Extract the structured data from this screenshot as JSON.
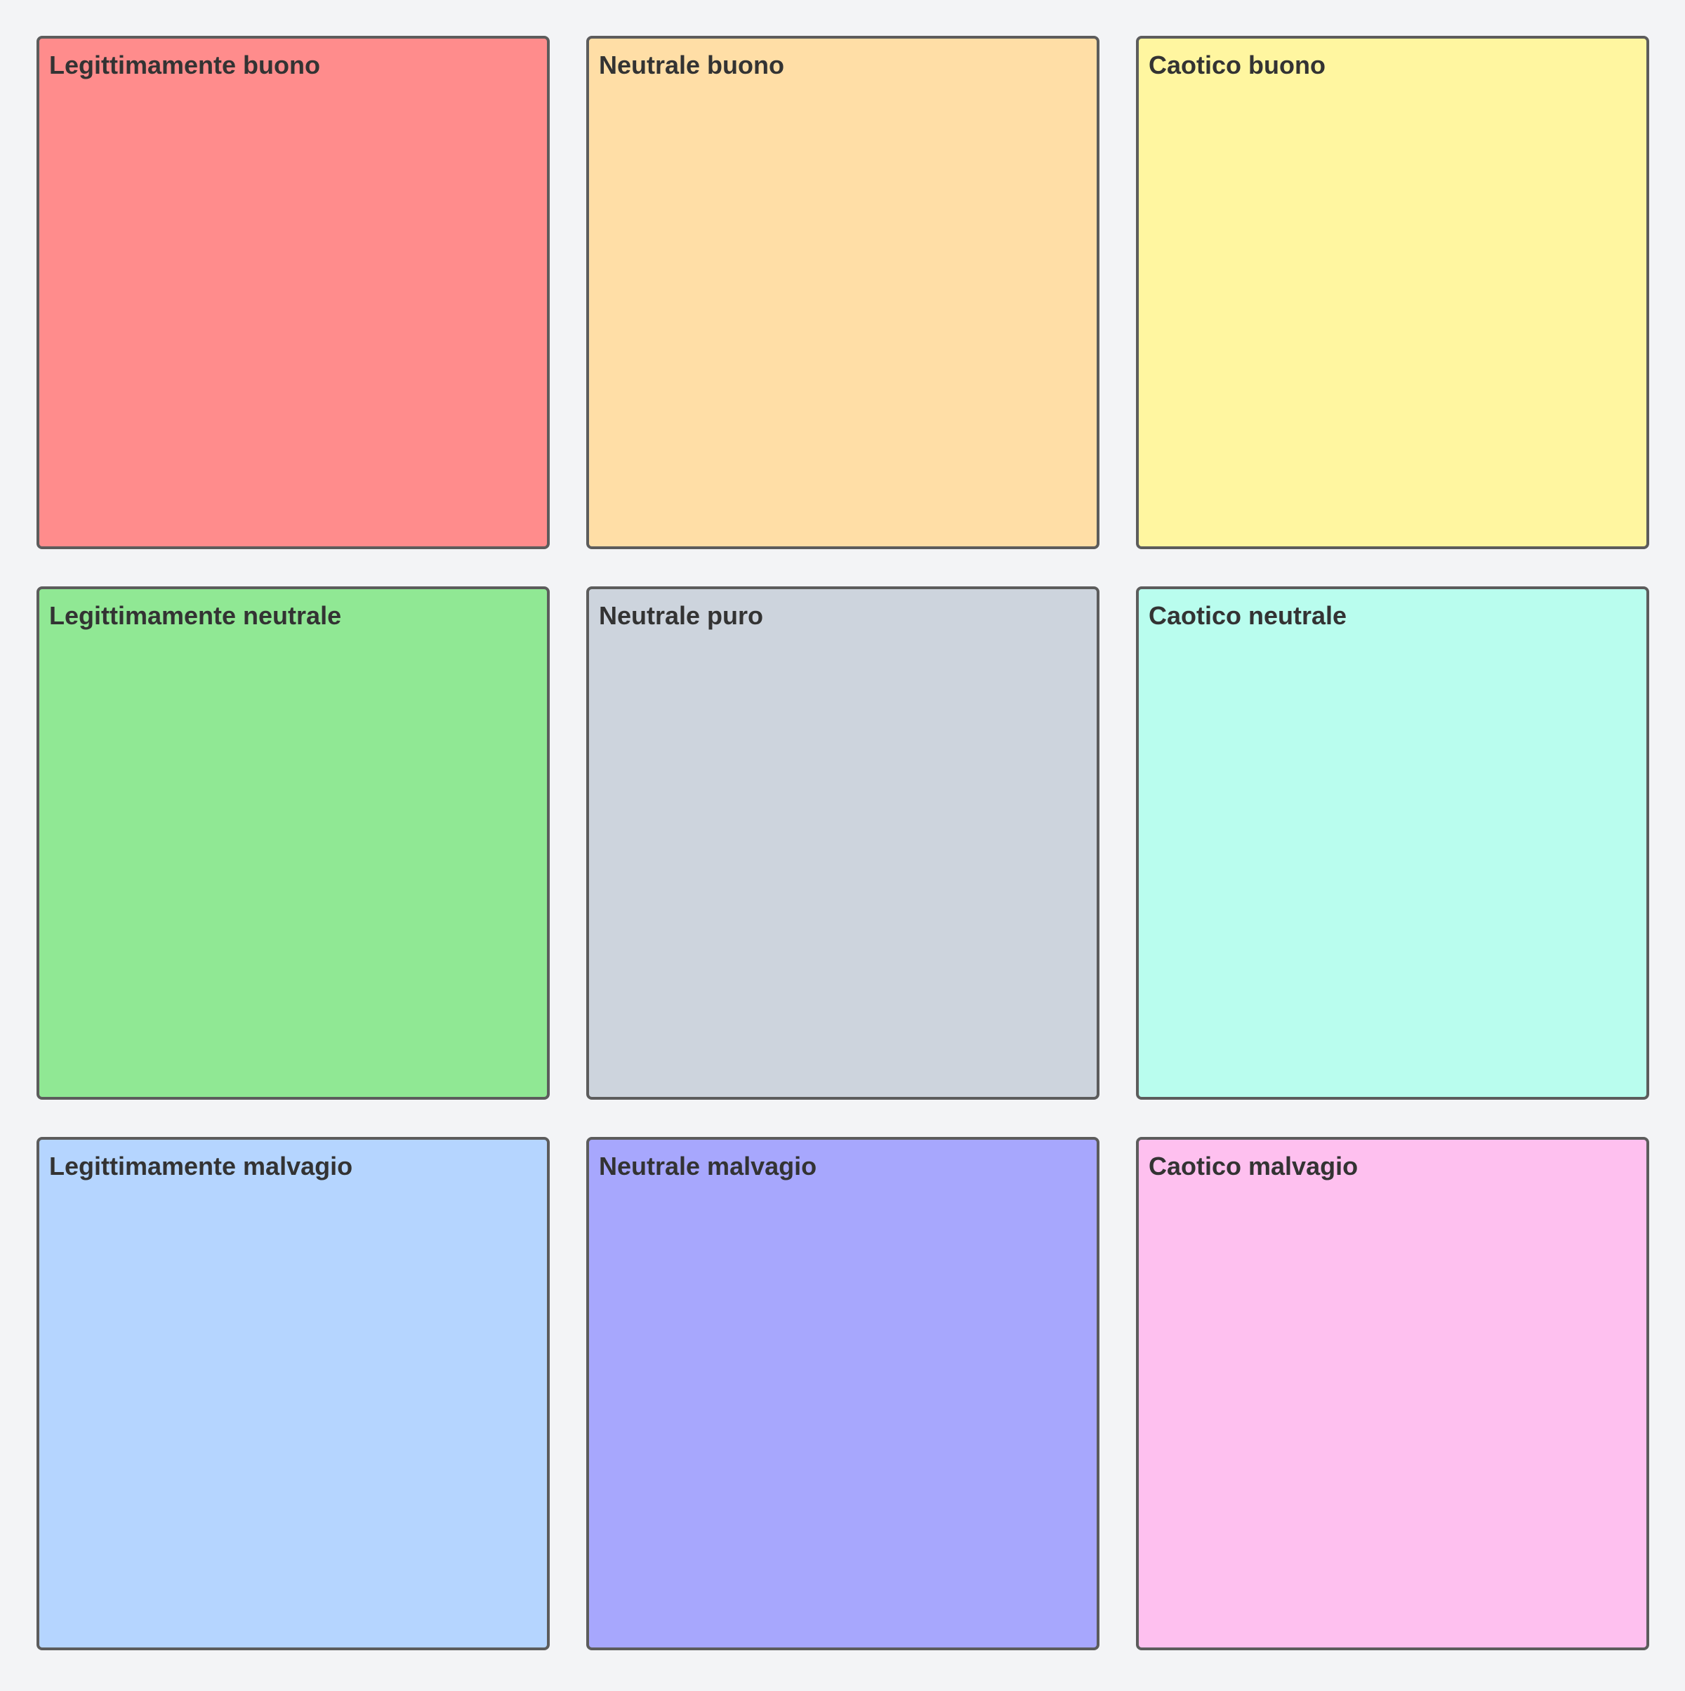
{
  "cells": [
    {
      "label": "Legittimamente buono",
      "color": "#ff8c8c"
    },
    {
      "label": "Neutrale buono",
      "color": "#ffdea6"
    },
    {
      "label": "Caotico buono",
      "color": "#fff6a0"
    },
    {
      "label": "Legittimamente neutrale",
      "color": "#90e894"
    },
    {
      "label": "Neutrale puro",
      "color": "#cdd4dd"
    },
    {
      "label": "Caotico neutrale",
      "color": "#b9fdee"
    },
    {
      "label": "Legittimamente malvagio",
      "color": "#b5d5ff"
    },
    {
      "label": "Neutrale malvagio",
      "color": "#a7a7fd"
    },
    {
      "label": "Caotico malvagio",
      "color": "#fec0ef"
    }
  ]
}
